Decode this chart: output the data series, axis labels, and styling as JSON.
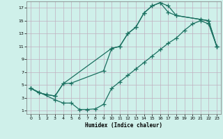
{
  "xlabel": "Humidex (Indice chaleur)",
  "bg_color": "#cff0ea",
  "grid_color": "#c0b0c0",
  "line_color": "#1a7060",
  "xlim": [
    -0.5,
    23.5
  ],
  "ylim": [
    0.5,
    18
  ],
  "xticks": [
    0,
    1,
    2,
    3,
    4,
    5,
    6,
    7,
    8,
    9,
    10,
    11,
    12,
    13,
    14,
    15,
    16,
    17,
    18,
    19,
    20,
    21,
    22,
    23
  ],
  "yticks": [
    1,
    3,
    5,
    7,
    9,
    11,
    13,
    15,
    17
  ],
  "line1_x": [
    0,
    1,
    2,
    3,
    4,
    10,
    11,
    12,
    13,
    14,
    15,
    16,
    17,
    18,
    21,
    22,
    23
  ],
  "line1_y": [
    4.5,
    3.8,
    3.5,
    3.3,
    5.2,
    10.7,
    11.0,
    13.0,
    14.0,
    16.2,
    17.3,
    17.8,
    17.3,
    15.8,
    15.2,
    15.0,
    11.0
  ],
  "line2_x": [
    0,
    1,
    2,
    3,
    4,
    5,
    9,
    10,
    11,
    12,
    13,
    14,
    15,
    16,
    17,
    18,
    21,
    22,
    23
  ],
  "line2_y": [
    4.5,
    3.8,
    3.5,
    3.3,
    5.2,
    5.3,
    7.2,
    10.7,
    11.0,
    13.0,
    14.0,
    16.2,
    17.3,
    17.8,
    16.3,
    15.8,
    15.2,
    15.0,
    11.0
  ],
  "line3_x": [
    0,
    3,
    4,
    5,
    6,
    7,
    8,
    9,
    10,
    11,
    12,
    13,
    14,
    15,
    16,
    17,
    18,
    19,
    20,
    21,
    22,
    23
  ],
  "line3_y": [
    4.5,
    2.7,
    2.2,
    2.2,
    1.2,
    1.2,
    1.3,
    2.0,
    4.5,
    5.5,
    6.5,
    7.5,
    8.5,
    9.5,
    10.5,
    11.5,
    12.3,
    13.5,
    14.5,
    15.0,
    14.5,
    11.0
  ]
}
